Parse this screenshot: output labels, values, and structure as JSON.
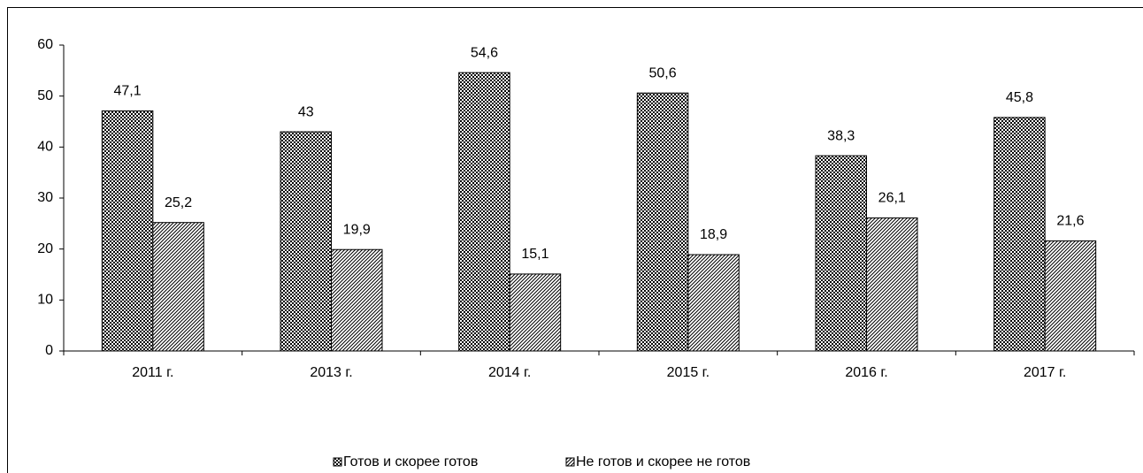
{
  "chart_data": {
    "type": "bar",
    "categories": [
      "2011 г.",
      "2013 г.",
      "2014 г.",
      "2015 г.",
      "2016 г.",
      "2017 г."
    ],
    "series": [
      {
        "name": "Готов и скорее готов",
        "color": "#000000",
        "pattern": "checker",
        "values": [
          47.1,
          43,
          54.6,
          50.6,
          38.3,
          45.8
        ],
        "value_labels": [
          "47,1",
          "43",
          "54,6",
          "50,6",
          "38,3",
          "45,8"
        ]
      },
      {
        "name": "Не готов и скорее не готов",
        "color": "#000000",
        "pattern": "diagonal",
        "values": [
          25.2,
          19.9,
          15.1,
          18.9,
          26.1,
          21.6
        ],
        "value_labels": [
          "25,2",
          "19,9",
          "15,1",
          "18,9",
          "26,1",
          "21,6"
        ]
      }
    ],
    "ylim": [
      0,
      60
    ],
    "yticks": [
      0,
      10,
      20,
      30,
      40,
      50,
      60
    ],
    "grid": false,
    "legend": "bottom"
  }
}
